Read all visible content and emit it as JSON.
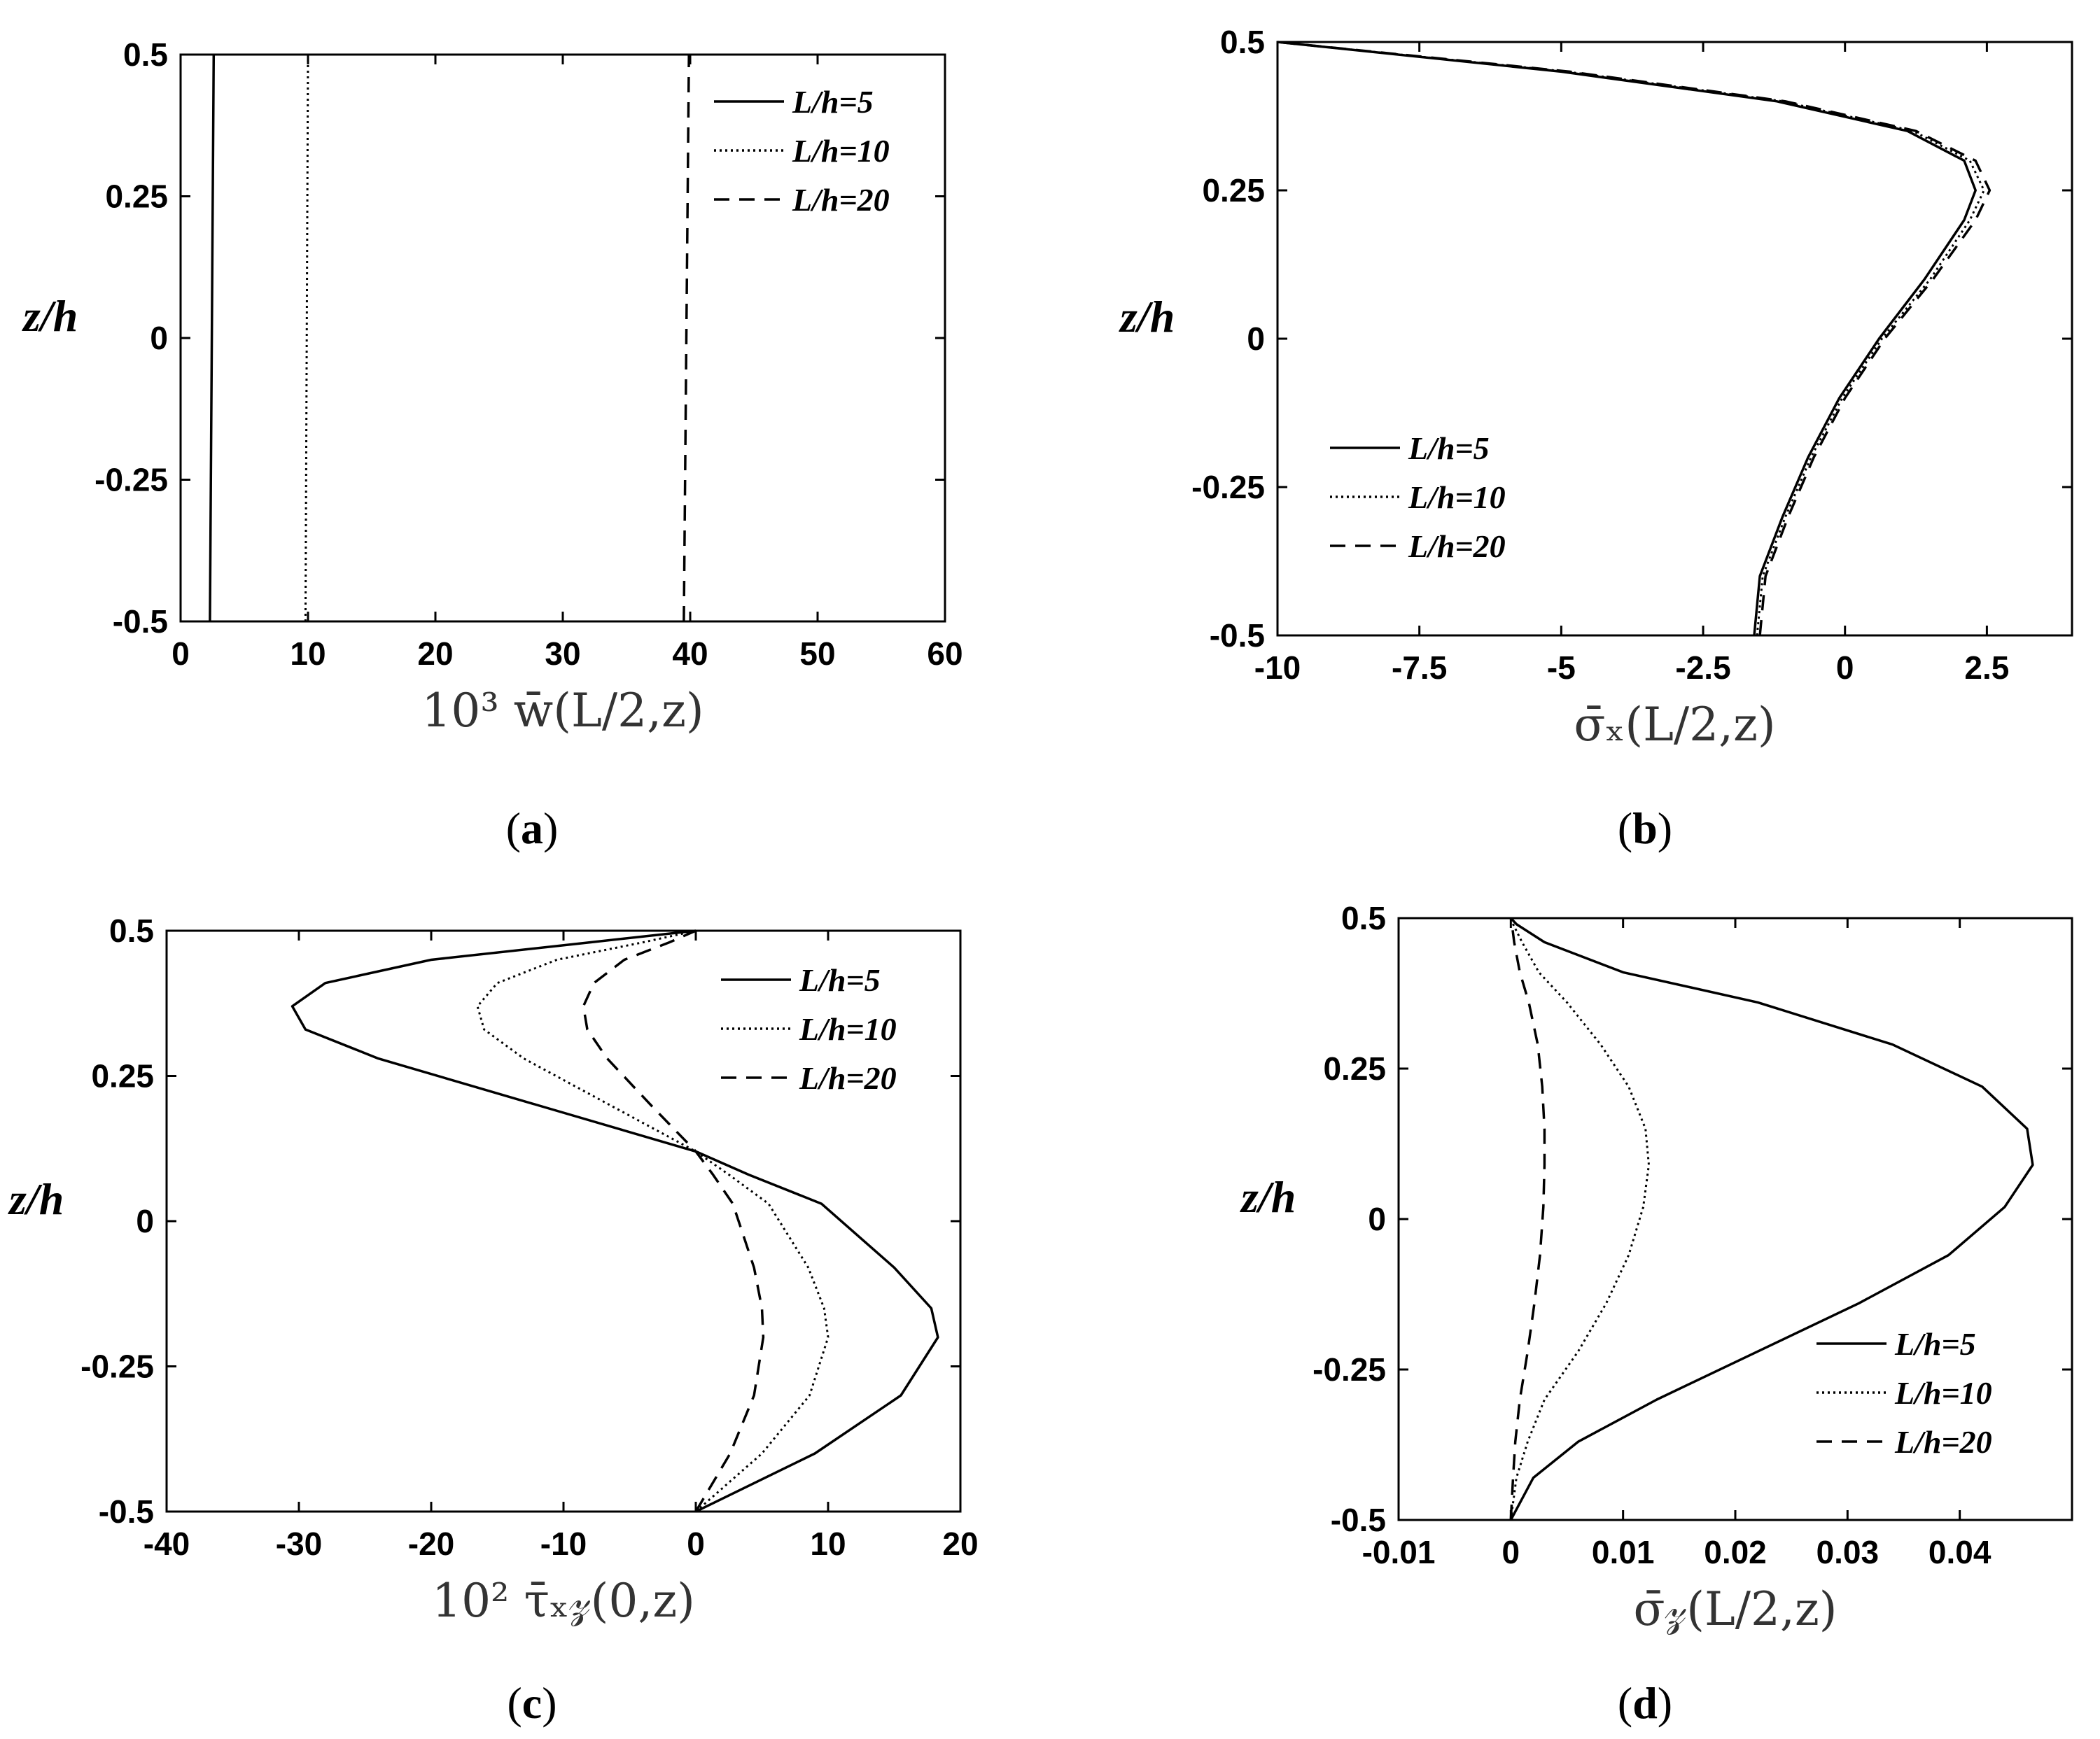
{
  "chart_data": [
    {
      "type": "line",
      "panel": "a",
      "caption": {
        "open": "(",
        "letter": "a",
        "close": ")"
      },
      "xlabel": "10³ w̄(L/2,z)",
      "ylabel": "z/h",
      "xlim": [
        0,
        60
      ],
      "ylim": [
        -0.5,
        0.5
      ],
      "xticks": [
        "0",
        "10",
        "20",
        "30",
        "40",
        "50",
        "60"
      ],
      "xtick_values": [
        0,
        10,
        20,
        30,
        40,
        50,
        60
      ],
      "yticks": [
        "0.5",
        "0.25",
        "0",
        "-0.25",
        "-0.5"
      ],
      "ytick_values": [
        0.5,
        0.25,
        0,
        -0.25,
        -0.5
      ],
      "grid": false,
      "legend_position": "top-right",
      "series": [
        {
          "name": "L/h=5",
          "style": "solid",
          "points": [
            [
              2.3,
              -0.5
            ],
            [
              2.45,
              0
            ],
            [
              2.6,
              0.5
            ]
          ]
        },
        {
          "name": "L/h=10",
          "style": "dotted",
          "points": [
            [
              9.8,
              -0.5
            ],
            [
              9.9,
              0
            ],
            [
              10.0,
              0.5
            ]
          ]
        },
        {
          "name": "L/h=20",
          "style": "dashed",
          "points": [
            [
              39.5,
              -0.5
            ],
            [
              39.7,
              0
            ],
            [
              39.9,
              0.5
            ]
          ]
        }
      ]
    },
    {
      "type": "line",
      "panel": "b",
      "caption": {
        "open": "(",
        "letter": "b",
        "close": ")"
      },
      "xlabel": "σ̄ₓ(L/2,z)",
      "ylabel": "z/h",
      "xlim": [
        -10,
        4
      ],
      "ylim": [
        -0.5,
        0.5
      ],
      "xticks": [
        "-10",
        "-7.5",
        "-5",
        "-2.5",
        "0",
        "2.5"
      ],
      "xtick_values": [
        -10,
        -7.5,
        -5,
        -2.5,
        0,
        2.5
      ],
      "yticks": [
        "0.5",
        "0.25",
        "0",
        "-0.25",
        "-0.5"
      ],
      "ytick_values": [
        0.5,
        0.25,
        0,
        -0.25,
        -0.5
      ],
      "grid": false,
      "legend_position": "middle-left",
      "series": [
        {
          "name": "L/h=5",
          "style": "solid",
          "points": [
            [
              -1.6,
              -0.5
            ],
            [
              -1.5,
              -0.4
            ],
            [
              -1.1,
              -0.3
            ],
            [
              -0.65,
              -0.2
            ],
            [
              -0.1,
              -0.1
            ],
            [
              0.6,
              0
            ],
            [
              1.4,
              0.1
            ],
            [
              2.1,
              0.2
            ],
            [
              2.3,
              0.25
            ],
            [
              2.1,
              0.3
            ],
            [
              1.1,
              0.35
            ],
            [
              -1.2,
              0.4
            ],
            [
              -5.0,
              0.45
            ],
            [
              -10.0,
              0.5
            ]
          ]
        },
        {
          "name": "L/h=10",
          "style": "dotted",
          "points": [
            [
              -1.55,
              -0.5
            ],
            [
              -1.45,
              -0.4
            ],
            [
              -1.05,
              -0.3
            ],
            [
              -0.6,
              -0.2
            ],
            [
              -0.05,
              -0.1
            ],
            [
              0.65,
              0
            ],
            [
              1.5,
              0.1
            ],
            [
              2.2,
              0.2
            ],
            [
              2.45,
              0.25
            ],
            [
              2.2,
              0.3
            ],
            [
              1.2,
              0.35
            ],
            [
              -1.1,
              0.4
            ],
            [
              -4.9,
              0.45
            ],
            [
              -10.0,
              0.5
            ]
          ]
        },
        {
          "name": "L/h=20",
          "style": "dashed",
          "points": [
            [
              -1.5,
              -0.5
            ],
            [
              -1.4,
              -0.4
            ],
            [
              -1.0,
              -0.3
            ],
            [
              -0.55,
              -0.2
            ],
            [
              0.0,
              -0.1
            ],
            [
              0.7,
              0
            ],
            [
              1.55,
              0.1
            ],
            [
              2.3,
              0.2
            ],
            [
              2.55,
              0.25
            ],
            [
              2.3,
              0.3
            ],
            [
              1.25,
              0.35
            ],
            [
              -1.05,
              0.4
            ],
            [
              -4.85,
              0.45
            ],
            [
              -10.0,
              0.5
            ]
          ]
        }
      ]
    },
    {
      "type": "line",
      "panel": "c",
      "caption": {
        "open": "(",
        "letter": "c",
        "close": ")"
      },
      "xlabel": "10² τ̄ₓ𝓏(0,z)",
      "ylabel": "z/h",
      "xlim": [
        -40,
        20
      ],
      "ylim": [
        -0.5,
        0.5
      ],
      "xticks": [
        "-40",
        "-30",
        "-20",
        "-10",
        "0",
        "10",
        "20"
      ],
      "xtick_values": [
        -40,
        -30,
        -20,
        -10,
        0,
        10,
        20
      ],
      "yticks": [
        "0.5",
        "0.25",
        "0",
        "-0.25",
        "-0.5"
      ],
      "ytick_values": [
        0.5,
        0.25,
        0,
        -0.25,
        -0.5
      ],
      "grid": false,
      "legend_position": "top-right",
      "series": [
        {
          "name": "L/h=5",
          "style": "solid",
          "points": [
            [
              0,
              -0.5
            ],
            [
              9.0,
              -0.4
            ],
            [
              15.5,
              -0.3
            ],
            [
              18.3,
              -0.2
            ],
            [
              17.8,
              -0.15
            ],
            [
              15.0,
              -0.08
            ],
            [
              9.5,
              0.03
            ],
            [
              4.0,
              0.08
            ],
            [
              0,
              0.12
            ],
            [
              -12.0,
              0.2
            ],
            [
              -24.0,
              0.28
            ],
            [
              -29.5,
              0.33
            ],
            [
              -30.5,
              0.37
            ],
            [
              -28.0,
              0.41
            ],
            [
              -20.0,
              0.45
            ],
            [
              -8.0,
              0.48
            ],
            [
              0,
              0.5
            ]
          ]
        },
        {
          "name": "L/h=10",
          "style": "dotted",
          "points": [
            [
              0,
              -0.5
            ],
            [
              5.0,
              -0.4
            ],
            [
              8.6,
              -0.3
            ],
            [
              10.0,
              -0.2
            ],
            [
              9.7,
              -0.15
            ],
            [
              8.5,
              -0.08
            ],
            [
              5.5,
              0.03
            ],
            [
              2.5,
              0.08
            ],
            [
              0,
              0.12
            ],
            [
              -6.5,
              0.2
            ],
            [
              -13.0,
              0.28
            ],
            [
              -16.0,
              0.33
            ],
            [
              -16.5,
              0.37
            ],
            [
              -15.0,
              0.41
            ],
            [
              -10.5,
              0.45
            ],
            [
              -4.0,
              0.48
            ],
            [
              0,
              0.5
            ]
          ]
        },
        {
          "name": "L/h=20",
          "style": "dashed",
          "points": [
            [
              0,
              -0.5
            ],
            [
              2.6,
              -0.4
            ],
            [
              4.4,
              -0.3
            ],
            [
              5.1,
              -0.2
            ],
            [
              5.0,
              -0.15
            ],
            [
              4.4,
              -0.08
            ],
            [
              2.8,
              0.03
            ],
            [
              1.3,
              0.08
            ],
            [
              0,
              0.12
            ],
            [
              -3.4,
              0.2
            ],
            [
              -6.7,
              0.28
            ],
            [
              -8.2,
              0.33
            ],
            [
              -8.5,
              0.37
            ],
            [
              -7.7,
              0.41
            ],
            [
              -5.4,
              0.45
            ],
            [
              -2.0,
              0.48
            ],
            [
              0,
              0.5
            ]
          ]
        }
      ]
    },
    {
      "type": "line",
      "panel": "d",
      "caption": {
        "open": "(",
        "letter": "d",
        "close": ")"
      },
      "xlabel": "σ̄𝓏(L/2,z)",
      "ylabel": "z/h",
      "xlim": [
        -0.01,
        0.05
      ],
      "ylim": [
        -0.5,
        0.5
      ],
      "xticks": [
        "-0.01",
        "0",
        "0.01",
        "0.02",
        "0.03",
        "0.04"
      ],
      "xtick_values": [
        -0.01,
        0,
        0.01,
        0.02,
        0.03,
        0.04
      ],
      "yticks": [
        "0.5",
        "0.25",
        "0",
        "-0.25",
        "-0.5"
      ],
      "ytick_values": [
        0.5,
        0.25,
        0,
        -0.25,
        -0.5
      ],
      "grid": false,
      "legend_position": "bottom-right",
      "series": [
        {
          "name": "L/h=5",
          "style": "solid",
          "points": [
            [
              0,
              -0.5
            ],
            [
              0.002,
              -0.43
            ],
            [
              0.006,
              -0.37
            ],
            [
              0.013,
              -0.3
            ],
            [
              0.022,
              -0.22
            ],
            [
              0.031,
              -0.14
            ],
            [
              0.039,
              -0.06
            ],
            [
              0.044,
              0.02
            ],
            [
              0.0465,
              0.09
            ],
            [
              0.046,
              0.15
            ],
            [
              0.042,
              0.22
            ],
            [
              0.034,
              0.29
            ],
            [
              0.022,
              0.36
            ],
            [
              0.01,
              0.41
            ],
            [
              0.003,
              0.46
            ],
            [
              0.0005,
              0.49
            ],
            [
              0,
              0.5
            ]
          ]
        },
        {
          "name": "L/h=10",
          "style": "dotted",
          "points": [
            [
              0,
              -0.5
            ],
            [
              0.0005,
              -0.43
            ],
            [
              0.0015,
              -0.37
            ],
            [
              0.003,
              -0.3
            ],
            [
              0.006,
              -0.22
            ],
            [
              0.0085,
              -0.14
            ],
            [
              0.0105,
              -0.06
            ],
            [
              0.0118,
              0.02
            ],
            [
              0.0123,
              0.09
            ],
            [
              0.012,
              0.15
            ],
            [
              0.0105,
              0.22
            ],
            [
              0.008,
              0.29
            ],
            [
              0.005,
              0.36
            ],
            [
              0.0025,
              0.41
            ],
            [
              0.001,
              0.46
            ],
            [
              0.0002,
              0.49
            ],
            [
              0,
              0.5
            ]
          ]
        },
        {
          "name": "L/h=20",
          "style": "dashed",
          "points": [
            [
              0,
              -0.5
            ],
            [
              0.0002,
              -0.43
            ],
            [
              0.0004,
              -0.37
            ],
            [
              0.0008,
              -0.3
            ],
            [
              0.0015,
              -0.22
            ],
            [
              0.0021,
              -0.14
            ],
            [
              0.0026,
              -0.06
            ],
            [
              0.0029,
              0.02
            ],
            [
              0.003,
              0.09
            ],
            [
              0.003,
              0.15
            ],
            [
              0.0028,
              0.22
            ],
            [
              0.0024,
              0.29
            ],
            [
              0.0016,
              0.36
            ],
            [
              0.0008,
              0.41
            ],
            [
              0.0003,
              0.46
            ],
            [
              0.0001,
              0.49
            ],
            [
              0,
              0.5
            ]
          ]
        }
      ]
    }
  ]
}
